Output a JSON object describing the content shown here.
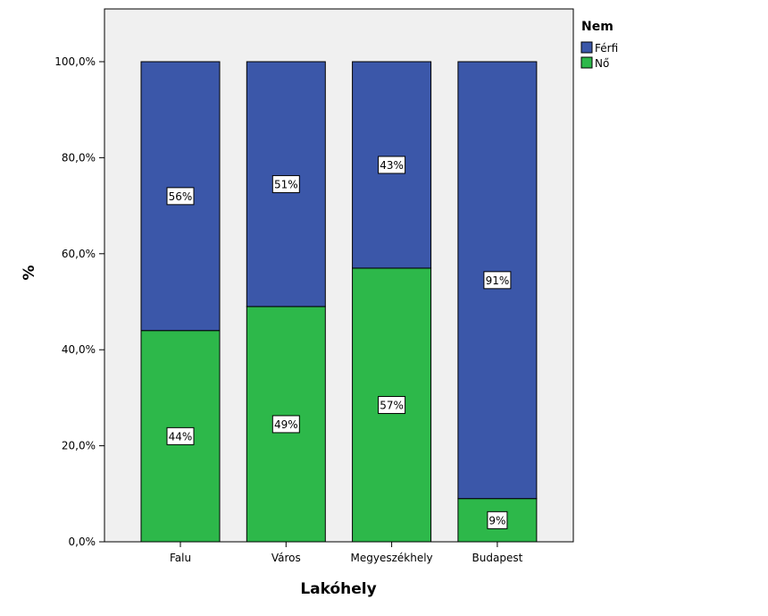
{
  "chart_data": {
    "type": "bar",
    "stacked": true,
    "categories": [
      "Falu",
      "Város",
      "Megyeszékhely",
      "Budapest"
    ],
    "series": [
      {
        "name": "Nő",
        "values": [
          44,
          49,
          57,
          9
        ],
        "labels": [
          "44%",
          "49%",
          "57%",
          "9%"
        ],
        "color": "#2db84a"
      },
      {
        "name": "Férfi",
        "values": [
          56,
          51,
          43,
          91
        ],
        "labels": [
          "56%",
          "51%",
          "43%",
          "91%"
        ],
        "color": "#3b57a9"
      }
    ],
    "y_ticks": [
      "0,0%",
      "20,0%",
      "40,0%",
      "60,0%",
      "80,0%",
      "100,0%"
    ],
    "ylim": [
      0,
      100
    ],
    "xlabel": "Lakóhely",
    "ylabel": "%",
    "legend": {
      "title": "Nem",
      "placement": "top-right",
      "entries": [
        "Férfi",
        "Nő"
      ]
    },
    "plot_background": "#f0f0f0",
    "grid": false
  }
}
